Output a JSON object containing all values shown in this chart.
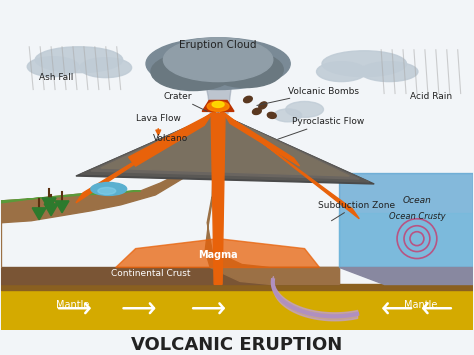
{
  "title": "VOLCANIC ERUPTION",
  "title_fontsize": 13,
  "title_fontweight": "bold",
  "labels": {
    "eruption_cloud": "Eruption Cloud",
    "crater": "Crater",
    "volcanic_bombs": "Volcanic Bombs",
    "ash_fall": "Ash Fall",
    "lava_flow": "Lava Flow",
    "pyroclastic_flow": "Pyroclastic Flow",
    "acid_rain": "Acid Rain",
    "volcano": "Volcano",
    "subduction_zone": "Subduction Zone",
    "ocean": "Ocean",
    "ocean_crusty": "Ocean Crusty",
    "continental_crust": "Continental Crust",
    "magma": "Magma",
    "mantle_left": "Mantle",
    "mantle_right": "Mantle"
  },
  "colors": {
    "sky": "#f2f5f8",
    "cloud_dark": "#7a8a96",
    "cloud_mid": "#909ea8",
    "cloud_light": "#c0ccd6",
    "volcano_dark": "#555555",
    "volcano_mid": "#6a6a6a",
    "volcano_tan": "#8a7860",
    "lava_orange": "#e8620a",
    "lava_bright": "#ff8c00",
    "lava_yellow": "#ffcc00",
    "ground_green": "#5a9a3a",
    "ground_brown": "#9b7045",
    "ground_dark": "#7a5030",
    "continental_crust": "#7a5535",
    "mantle_yellow": "#d4aa00",
    "mantle_dark": "#8a6020",
    "ocean_blue": "#4a9acc",
    "ocean_light": "#70bce0",
    "ocean_crust": "#8888a0",
    "subduction": "#c0a0d0",
    "tree_green": "#2d7a2d",
    "lake_blue": "#5ab0d0",
    "text_dark": "#222222",
    "label_line": "#444444",
    "white": "#ffffff",
    "ash": "#aaaaaa"
  }
}
